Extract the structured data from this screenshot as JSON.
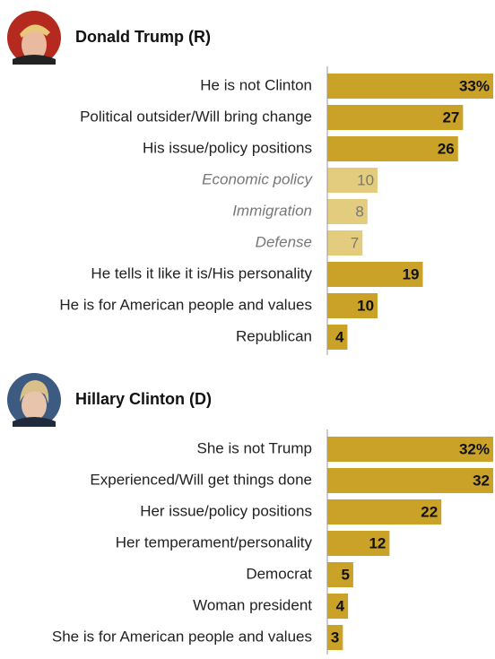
{
  "chart_data": [
    {
      "type": "bar",
      "title": "Donald Trump (R)",
      "categories": [
        "He is not Clinton",
        "Political outsider/Will bring change",
        "His issue/policy positions",
        "Economic policy",
        "Immigration",
        "Defense",
        "He tells it like it is/His personality",
        "He is for American people and values",
        "Republican"
      ],
      "values": [
        33,
        27,
        26,
        10,
        8,
        7,
        19,
        10,
        4
      ],
      "value_labels": [
        "33%",
        "27",
        "26",
        "10",
        "8",
        "7",
        "19",
        "10",
        "4"
      ],
      "colors": [
        "#c9a227",
        "#c9a227",
        "#c9a227",
        "#e3cc7e",
        "#e3cc7e",
        "#e3cc7e",
        "#c9a227",
        "#c9a227",
        "#c9a227"
      ],
      "italic": [
        false,
        false,
        false,
        true,
        true,
        true,
        false,
        false,
        false
      ]
    },
    {
      "type": "bar",
      "title": "Hillary Clinton (D)",
      "categories": [
        "She is not Trump",
        "Experienced/Will get things done",
        "Her issue/policy positions",
        "Her temperament/personality",
        "Democrat",
        "Woman president",
        "She is for American people and values"
      ],
      "values": [
        32,
        32,
        22,
        12,
        5,
        4,
        3
      ],
      "value_labels": [
        "32%",
        "32",
        "22",
        "12",
        "5",
        "4",
        "3"
      ],
      "colors": [
        "#c9a227",
        "#c9a227",
        "#c9a227",
        "#c9a227",
        "#c9a227",
        "#c9a227",
        "#c9a227"
      ],
      "italic": [
        false,
        false,
        false,
        false,
        false,
        false,
        false
      ]
    }
  ]
}
